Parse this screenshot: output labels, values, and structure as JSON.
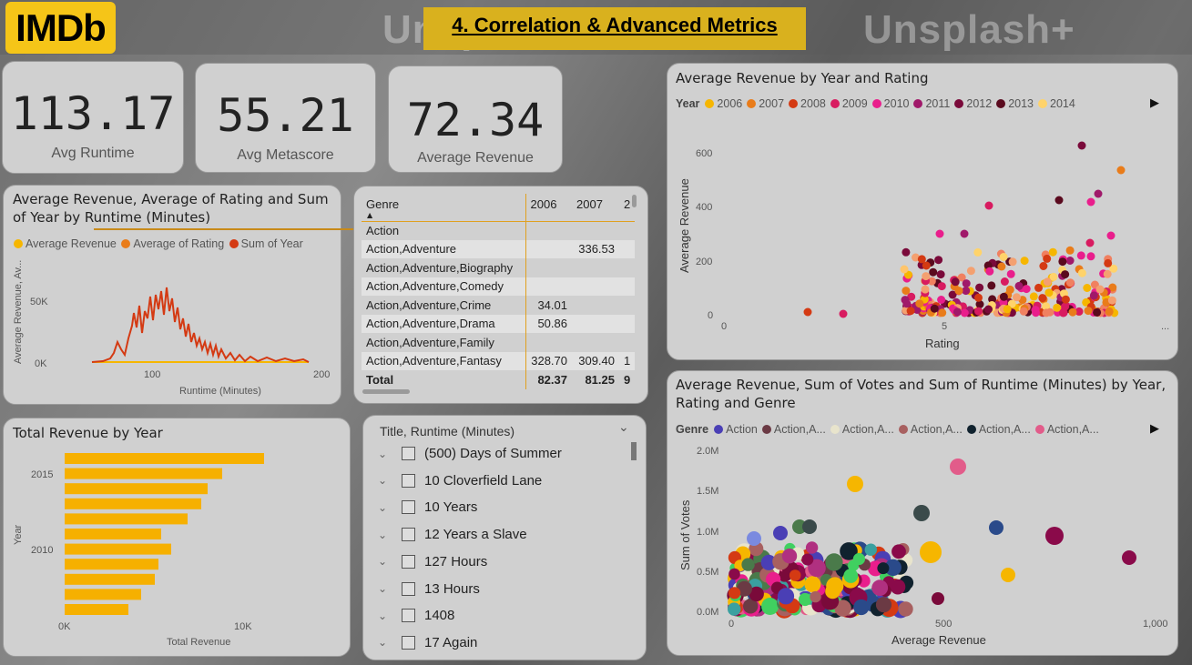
{
  "header": {
    "logo": "IMDb",
    "page_title": "4. Correlation & Advanced Metrics"
  },
  "background_watermarks": [
    "Unsplash+",
    "Unsplash+"
  ],
  "kpis": [
    {
      "value": "113.17",
      "label": "Avg Runtime"
    },
    {
      "value": "55.21",
      "label": "Avg Metascore"
    },
    {
      "value": "72.34",
      "label": "Average Revenue"
    }
  ],
  "line_chart": {
    "title": "Average Revenue, Average of Rating and Sum of Year by Runtime (Minutes)",
    "legend": [
      "Average Revenue",
      "Average of Rating",
      "Sum of Year"
    ],
    "colors": [
      "#f6b600",
      "#e97c1a",
      "#d43a13"
    ],
    "yaxis_title": "Average Revenue, Av...",
    "xaxis_title": "Runtime (Minutes)",
    "yticks": [
      "50K",
      "0K"
    ],
    "xticks": [
      "100",
      "200"
    ]
  },
  "matrix": {
    "headers": [
      "Genre",
      "2006",
      "2007",
      "2"
    ],
    "rows": [
      [
        "Action",
        "",
        "",
        ""
      ],
      [
        "Action,Adventure",
        "",
        "336.53",
        ""
      ],
      [
        "Action,Adventure,Biography",
        "",
        "",
        ""
      ],
      [
        "Action,Adventure,Comedy",
        "",
        "",
        ""
      ],
      [
        "Action,Adventure,Crime",
        "34.01",
        "",
        ""
      ],
      [
        "Action,Adventure,Drama",
        "50.86",
        "",
        ""
      ],
      [
        "Action,Adventure,Family",
        "",
        "",
        ""
      ],
      [
        "Action,Adventure,Fantasy",
        "328.70",
        "309.40",
        "1"
      ]
    ],
    "total": [
      "Total",
      "82.37",
      "81.25",
      "9"
    ]
  },
  "bar_chart": {
    "title": "Total Revenue by Year",
    "yaxis_title": "Year",
    "xaxis_title": "Total Revenue",
    "yticks": [
      "2015",
      "2010"
    ],
    "xticks": [
      "0K",
      "10K"
    ],
    "bar_color": "#f6b000"
  },
  "slicer": {
    "header": "Title, Runtime (Minutes)",
    "items": [
      "(500) Days of Summer",
      "10 Cloverfield Lane",
      "10 Years",
      "12 Years a Slave",
      "127 Hours",
      "13 Hours",
      "1408",
      "17 Again"
    ]
  },
  "scatter1": {
    "title": "Average Revenue by Year and Rating",
    "legend_title": "Year",
    "legend": [
      {
        "name": "2006",
        "color": "#f6b600"
      },
      {
        "name": "2007",
        "color": "#e97c1a"
      },
      {
        "name": "2008",
        "color": "#d43a13"
      },
      {
        "name": "2009",
        "color": "#d81b60"
      },
      {
        "name": "2010",
        "color": "#e91e8c"
      },
      {
        "name": "2011",
        "color": "#a0196a"
      },
      {
        "name": "2012",
        "color": "#7a0a3a"
      },
      {
        "name": "2013",
        "color": "#5a0a1e"
      },
      {
        "name": "2014",
        "color": "#ffd36b"
      }
    ],
    "yaxis_title": "Average Revenue",
    "xaxis_title": "Rating",
    "yticks": [
      "600",
      "400",
      "200",
      "0"
    ],
    "xticks": [
      "0",
      "5",
      "..."
    ]
  },
  "scatter2": {
    "title": "Average Revenue, Sum of Votes and Sum of Runtime (Minutes) by Year, Rating and Genre",
    "legend_title": "Genre",
    "legend": [
      {
        "name": "Action",
        "color": "#4a3fb5"
      },
      {
        "name": "Action,A...",
        "color": "#6b3a44"
      },
      {
        "name": "Action,A...",
        "color": "#e8e4cc"
      },
      {
        "name": "Action,A...",
        "color": "#a86060"
      },
      {
        "name": "Action,A...",
        "color": "#10222e"
      },
      {
        "name": "Action,A...",
        "color": "#e25c8a"
      }
    ],
    "yaxis_title": "Sum of Votes",
    "xaxis_title": "Average Revenue",
    "yticks": [
      "2.0M",
      "1.5M",
      "1.0M",
      "0.5M",
      "0.0M"
    ],
    "xticks": [
      "0",
      "500",
      "1,000"
    ]
  }
}
